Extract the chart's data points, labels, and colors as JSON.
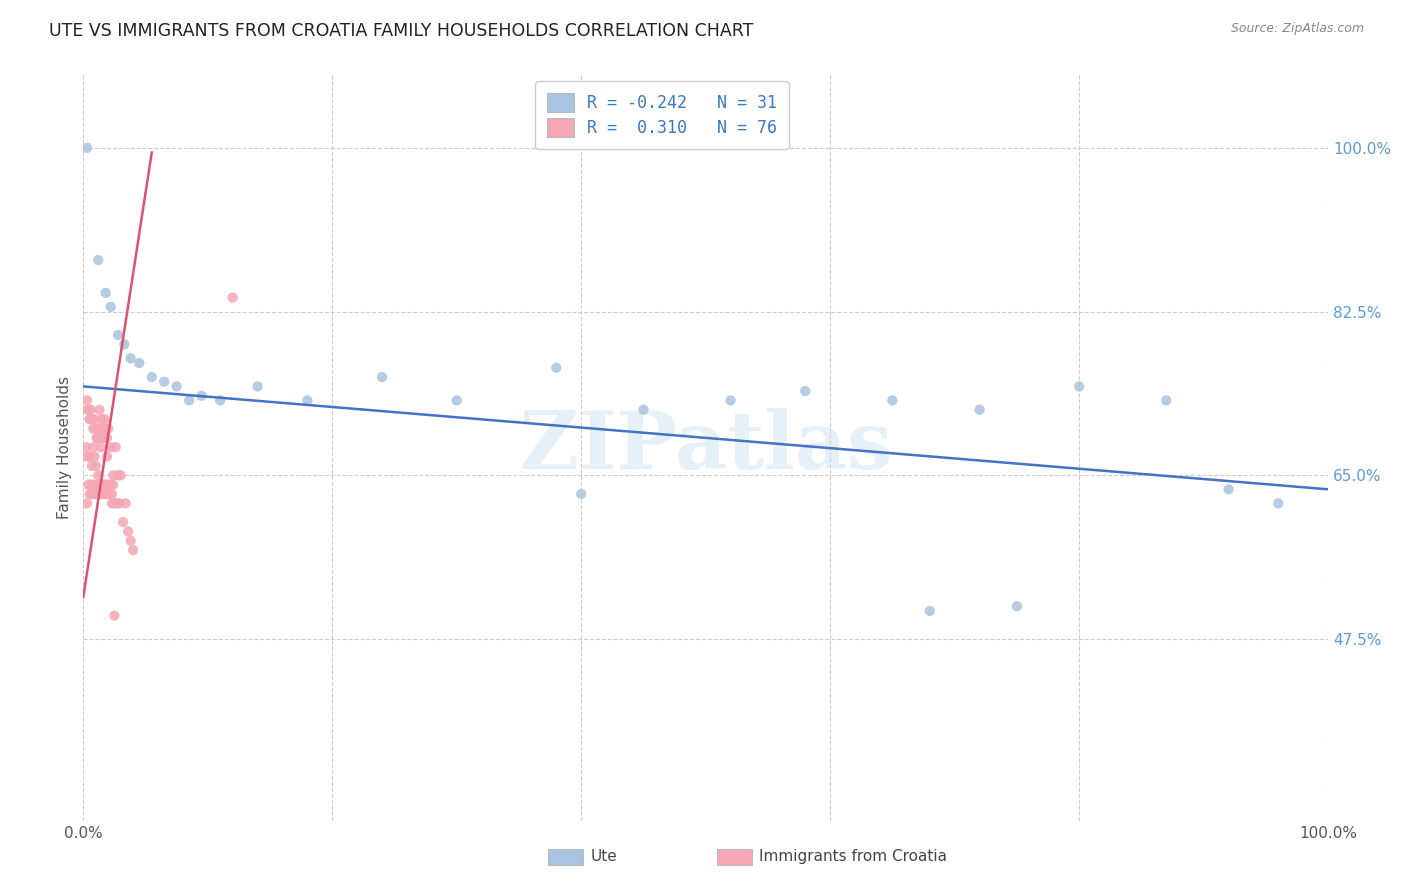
{
  "title": "UTE VS IMMIGRANTS FROM CROATIA FAMILY HOUSEHOLDS CORRELATION CHART",
  "source": "Source: ZipAtlas.com",
  "ylabel": "Family Households",
  "ytick_labels": [
    "100.0%",
    "82.5%",
    "65.0%",
    "47.5%"
  ],
  "ytick_values": [
    1.0,
    0.825,
    0.65,
    0.475
  ],
  "ymin": 0.28,
  "ymax": 1.08,
  "xmin": 0.0,
  "xmax": 1.0,
  "legend_label1": "Ute",
  "legend_label2": "Immigrants from Croatia",
  "R1": -0.242,
  "N1": 31,
  "R2": 0.31,
  "N2": 76,
  "color_ute": "#a8c4e0",
  "color_croatia": "#f4a7b5",
  "color_trendline_ute": "#4472c4",
  "color_trendline_croatia": "#e05070",
  "watermark": "ZIPatlas",
  "ute_x": [
    0.003,
    0.012,
    0.018,
    0.022,
    0.028,
    0.033,
    0.038,
    0.045,
    0.055,
    0.065,
    0.075,
    0.085,
    0.095,
    0.11,
    0.14,
    0.18,
    0.24,
    0.3,
    0.38,
    0.45,
    0.52,
    0.58,
    0.65,
    0.72,
    0.8,
    0.87,
    0.92,
    0.96,
    0.4,
    0.68,
    0.75
  ],
  "ute_y": [
    1.0,
    0.88,
    0.845,
    0.83,
    0.8,
    0.79,
    0.775,
    0.77,
    0.755,
    0.75,
    0.745,
    0.73,
    0.735,
    0.73,
    0.745,
    0.73,
    0.755,
    0.73,
    0.765,
    0.72,
    0.73,
    0.74,
    0.73,
    0.72,
    0.745,
    0.73,
    0.635,
    0.62,
    0.63,
    0.505,
    0.51
  ],
  "croatia_x": [
    0.002,
    0.003,
    0.004,
    0.005,
    0.006,
    0.007,
    0.008,
    0.009,
    0.01,
    0.011,
    0.012,
    0.013,
    0.014,
    0.015,
    0.016,
    0.017,
    0.018,
    0.019,
    0.02,
    0.021,
    0.022,
    0.023,
    0.024,
    0.025,
    0.026,
    0.027,
    0.028,
    0.029,
    0.03,
    0.032,
    0.034,
    0.036,
    0.038,
    0.04,
    0.003,
    0.004,
    0.005,
    0.006,
    0.007,
    0.008,
    0.009,
    0.01,
    0.011,
    0.012,
    0.013,
    0.014,
    0.015,
    0.016,
    0.017,
    0.018,
    0.019,
    0.02,
    0.003,
    0.004,
    0.005,
    0.006,
    0.007,
    0.008,
    0.009,
    0.01,
    0.011,
    0.012,
    0.013,
    0.014,
    0.015,
    0.016,
    0.017,
    0.018,
    0.019,
    0.02,
    0.021,
    0.022,
    0.023,
    0.024,
    0.025,
    0.12
  ],
  "croatia_y": [
    0.68,
    0.67,
    0.72,
    0.67,
    0.71,
    0.66,
    0.68,
    0.67,
    0.66,
    0.69,
    0.65,
    0.72,
    0.68,
    0.71,
    0.64,
    0.71,
    0.63,
    0.67,
    0.63,
    0.64,
    0.68,
    0.62,
    0.65,
    0.62,
    0.68,
    0.62,
    0.65,
    0.62,
    0.65,
    0.6,
    0.62,
    0.59,
    0.58,
    0.57,
    0.73,
    0.72,
    0.71,
    0.72,
    0.71,
    0.7,
    0.71,
    0.7,
    0.69,
    0.7,
    0.69,
    0.7,
    0.69,
    0.7,
    0.69,
    0.7,
    0.69,
    0.7,
    0.62,
    0.64,
    0.63,
    0.64,
    0.63,
    0.64,
    0.63,
    0.64,
    0.63,
    0.64,
    0.63,
    0.64,
    0.63,
    0.64,
    0.63,
    0.64,
    0.63,
    0.64,
    0.63,
    0.64,
    0.63,
    0.64,
    0.5,
    0.84
  ],
  "ute_trendline_x": [
    0.0,
    1.0
  ],
  "ute_trendline_y": [
    0.745,
    0.635
  ],
  "croatia_trendline_x": [
    0.0,
    0.055
  ],
  "croatia_trendline_y": [
    0.52,
    0.995
  ]
}
